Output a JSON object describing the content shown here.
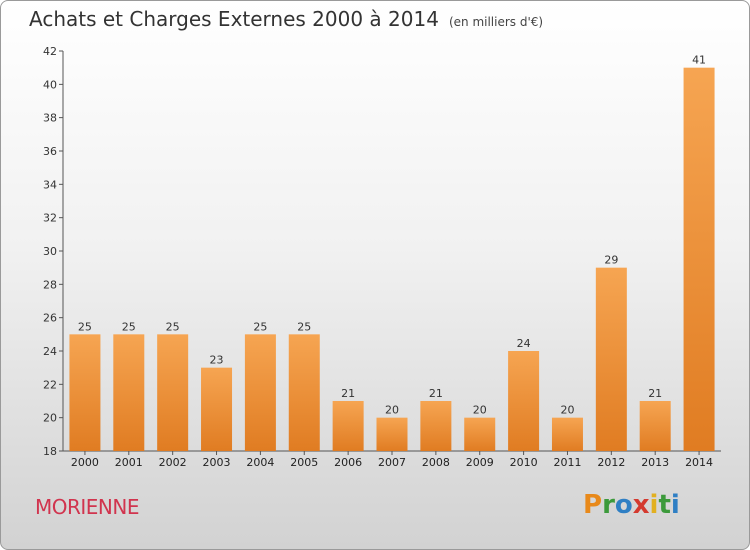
{
  "header": {
    "title": "Achats et Charges Externes 2000 à 2014",
    "subtitle": "(en milliers d'€)"
  },
  "location": "MORIENNE",
  "logo": {
    "text": "Proxiti",
    "letters": [
      "P",
      "r",
      "o",
      "x",
      "i",
      "t",
      "i"
    ],
    "colors": [
      "#e8891a",
      "#3c9a3b",
      "#2f7fc4",
      "#d43a2f",
      "#e2b020",
      "#3c9a3b",
      "#2f7fc4"
    ]
  },
  "colors": {
    "bar_top": "#f6a552",
    "bar_bottom": "#e07c22",
    "axis": "#555555"
  },
  "chart_data": {
    "type": "bar",
    "title": "Achats et Charges Externes 2000 à 2014",
    "subtitle": "(en milliers d'€)",
    "categories": [
      "2000",
      "2001",
      "2002",
      "2003",
      "2004",
      "2005",
      "2006",
      "2007",
      "2008",
      "2009",
      "2010",
      "2011",
      "2012",
      "2013",
      "2014"
    ],
    "values": [
      25,
      25,
      25,
      23,
      25,
      25,
      21,
      20,
      21,
      20,
      24,
      20,
      29,
      21,
      41
    ],
    "ylim": [
      18,
      42
    ],
    "yticks": [
      18,
      20,
      22,
      24,
      26,
      28,
      30,
      32,
      34,
      36,
      38,
      40,
      42
    ],
    "grid": false,
    "legend": "none"
  }
}
